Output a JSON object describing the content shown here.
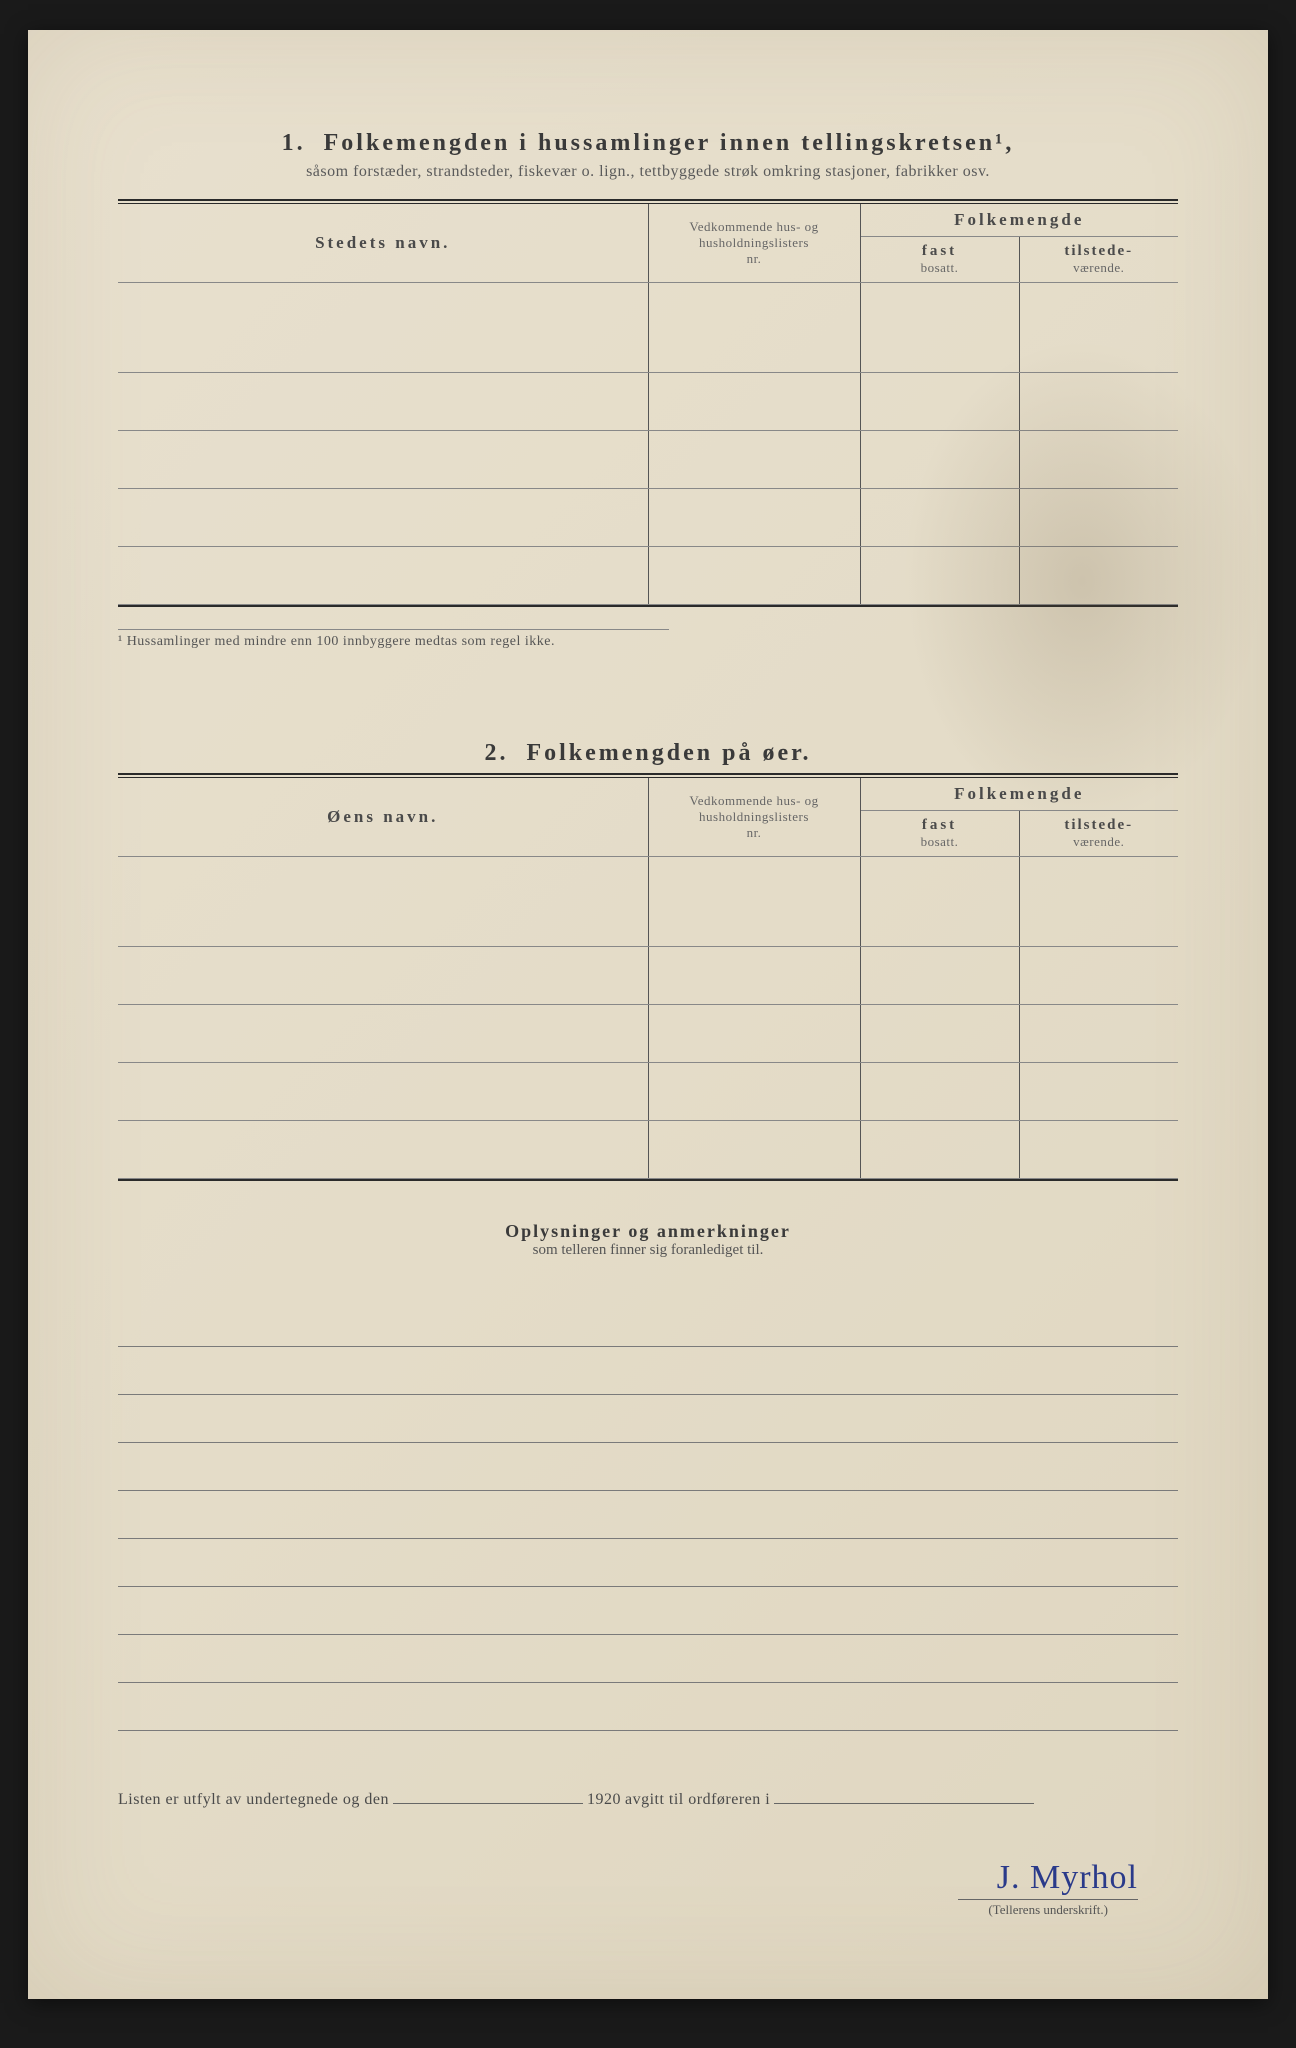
{
  "section1": {
    "number": "1.",
    "title": "Folkemengden i hussamlinger innen tellingskretsen¹,",
    "subtitle": "såsom forstæder, strandsteder, fiskevær o. lign., tettbyggede strøk omkring stasjoner, fabrikker osv.",
    "col_name": "Stedets navn.",
    "col_ref_l1": "Vedkommende hus- og",
    "col_ref_l2": "husholdningslisters",
    "col_ref_l3": "nr.",
    "col_pop": "Folkemengde",
    "col_fast_l1": "fast",
    "col_fast_l2": "bosatt.",
    "col_til_l1": "tilstede-",
    "col_til_l2": "værende.",
    "footnote": "¹  Hussamlinger med mindre enn 100 innbyggere medtas som regel ikke.",
    "row_count": 5
  },
  "section2": {
    "number": "2.",
    "title": "Folkemengden på øer.",
    "col_name": "Øens navn.",
    "col_ref_l1": "Vedkommende hus- og",
    "col_ref_l2": "husholdningslisters",
    "col_ref_l3": "nr.",
    "col_pop": "Folkemengde",
    "col_fast_l1": "fast",
    "col_fast_l2": "bosatt.",
    "col_til_l1": "tilstede-",
    "col_til_l2": "værende.",
    "row_count": 5
  },
  "notes": {
    "title": "Oplysninger og anmerkninger",
    "subtitle": "som telleren finner sig foranlediget til.",
    "line_count": 9
  },
  "signoff": {
    "prefix": "Listen er utfylt av undertegnede og den",
    "year": "1920",
    "middle": "avgitt til ordføreren i",
    "blank1_width": 190,
    "blank2_width": 260
  },
  "signature": {
    "text": "J. Myrhol",
    "label": "(Tellerens underskrift.)"
  },
  "layout": {
    "col_name_pct": 50,
    "col_ref_pct": 20,
    "col_fast_pct": 15,
    "col_til_pct": 15
  },
  "colors": {
    "paper": "#e4dcc8",
    "ink": "#3a3a3a",
    "rule": "#2a2a2a",
    "signature": "#2a3a8a"
  }
}
